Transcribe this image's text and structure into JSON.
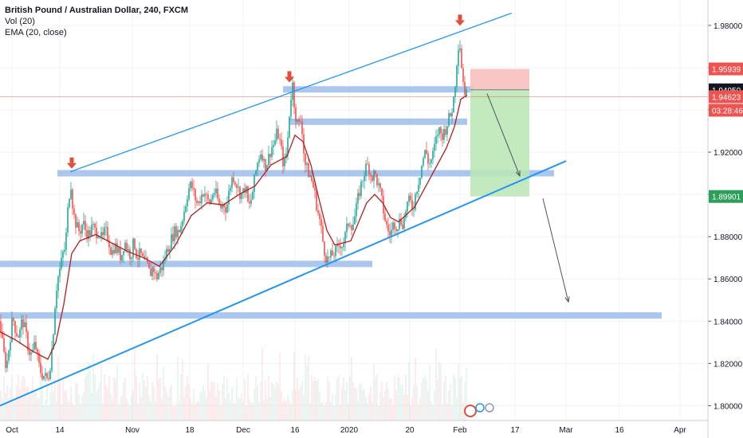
{
  "legend": {
    "title": "British Pound / Australian Dollar, 240, FXCM",
    "vol": "Vol (20)",
    "ema": "EMA (20, close)"
  },
  "colors": {
    "up": "#26a69a",
    "down": "#ef5350",
    "ema": "#b71c1c",
    "trendline": "#2196f3",
    "zone": "#90b4e8",
    "stop": "#f8bcbc",
    "target": "#b9e6b4",
    "arrow_marker": "#e04e39"
  },
  "chart_data": {
    "type": "candlestick",
    "symbol": "GBPAUD",
    "timeframe": "240",
    "x_tick_labels": [
      "Oct",
      "14",
      "Nov",
      "18",
      "Dec",
      "16",
      "2020",
      "20",
      "Feb",
      "17",
      "Mar",
      "16",
      "Apr"
    ],
    "y_ticks": [
      "1.98000",
      "1.96000",
      "1.94000",
      "1.92000",
      "1.90000",
      "1.88000",
      "1.86000",
      "1.84000",
      "1.82000",
      "1.80000"
    ],
    "ylim": [
      1.793,
      1.992
    ],
    "price_labels": [
      {
        "text": "1.95939",
        "value": 1.95939,
        "color": "#ef5350"
      },
      {
        "text": "1.94950",
        "value": 1.9495,
        "color": "#131722"
      },
      {
        "text": "1.94623",
        "value": 1.94623,
        "color": "#ef5350"
      },
      {
        "text": "03:28:46",
        "value": 1.94623,
        "color": "#ef5350",
        "offset": true
      },
      {
        "text": "1.89901",
        "value": 1.89901,
        "color": "#2e9e5b"
      }
    ],
    "price_path": [
      [
        0,
        1.84
      ],
      [
        4,
        1.826
      ],
      [
        8,
        1.818
      ],
      [
        12,
        1.83
      ],
      [
        16,
        1.842
      ],
      [
        20,
        1.835
      ],
      [
        24,
        1.833
      ],
      [
        28,
        1.841
      ],
      [
        32,
        1.835
      ],
      [
        36,
        1.826
      ],
      [
        40,
        1.824
      ],
      [
        44,
        1.83
      ],
      [
        48,
        1.82
      ],
      [
        52,
        1.815
      ],
      [
        56,
        1.814
      ],
      [
        60,
        1.812
      ],
      [
        64,
        1.822
      ],
      [
        67,
        1.836
      ],
      [
        70,
        1.854
      ],
      [
        73,
        1.861
      ],
      [
        76,
        1.866
      ],
      [
        79,
        1.872
      ],
      [
        82,
        1.875
      ],
      [
        86,
        1.898
      ],
      [
        89,
        1.905
      ],
      [
        92,
        1.891
      ],
      [
        96,
        1.885
      ],
      [
        100,
        1.882
      ],
      [
        104,
        1.887
      ],
      [
        108,
        1.882
      ],
      [
        112,
        1.881
      ],
      [
        116,
        1.885
      ],
      [
        120,
        1.882
      ],
      [
        124,
        1.883
      ],
      [
        128,
        1.878
      ],
      [
        132,
        1.883
      ],
      [
        136,
        1.879
      ],
      [
        140,
        1.872
      ],
      [
        144,
        1.876
      ],
      [
        148,
        1.873
      ],
      [
        152,
        1.87
      ],
      [
        156,
        1.878
      ],
      [
        160,
        1.874
      ],
      [
        164,
        1.871
      ],
      [
        168,
        1.878
      ],
      [
        172,
        1.87
      ],
      [
        176,
        1.872
      ],
      [
        180,
        1.868
      ],
      [
        184,
        1.867
      ],
      [
        188,
        1.862
      ],
      [
        192,
        1.866
      ],
      [
        196,
        1.86
      ],
      [
        200,
        1.864
      ],
      [
        204,
        1.866
      ],
      [
        208,
        1.872
      ],
      [
        212,
        1.876
      ],
      [
        216,
        1.88
      ],
      [
        220,
        1.883
      ],
      [
        224,
        1.882
      ],
      [
        228,
        1.887
      ],
      [
        232,
        1.894
      ],
      [
        236,
        1.902
      ],
      [
        240,
        1.905
      ],
      [
        244,
        1.899
      ],
      [
        248,
        1.895
      ],
      [
        252,
        1.899
      ],
      [
        256,
        1.902
      ],
      [
        260,
        1.897
      ],
      [
        264,
        1.896
      ],
      [
        268,
        1.902
      ],
      [
        272,
        1.899
      ],
      [
        276,
        1.893
      ],
      [
        280,
        1.896
      ],
      [
        284,
        1.893
      ],
      [
        288,
        1.903
      ],
      [
        292,
        1.909
      ],
      [
        296,
        1.906
      ],
      [
        300,
        1.901
      ],
      [
        304,
        1.9
      ],
      [
        308,
        1.904
      ],
      [
        312,
        1.893
      ],
      [
        316,
        1.899
      ],
      [
        320,
        1.909
      ],
      [
        324,
        1.917
      ],
      [
        328,
        1.921
      ],
      [
        332,
        1.913
      ],
      [
        336,
        1.916
      ],
      [
        340,
        1.922
      ],
      [
        344,
        1.924
      ],
      [
        348,
        1.93
      ],
      [
        352,
        1.923
      ],
      [
        356,
        1.913
      ],
      [
        360,
        1.921
      ],
      [
        364,
        1.944
      ],
      [
        367,
        1.952
      ],
      [
        370,
        1.939
      ],
      [
        374,
        1.932
      ],
      [
        378,
        1.936
      ],
      [
        382,
        1.915
      ],
      [
        386,
        1.911
      ],
      [
        390,
        1.908
      ],
      [
        394,
        1.902
      ],
      [
        398,
        1.893
      ],
      [
        402,
        1.886
      ],
      [
        406,
        1.875
      ],
      [
        410,
        1.869
      ],
      [
        414,
        1.87
      ],
      [
        418,
        1.872
      ],
      [
        422,
        1.873
      ],
      [
        426,
        1.877
      ],
      [
        430,
        1.876
      ],
      [
        434,
        1.882
      ],
      [
        438,
        1.888
      ],
      [
        442,
        1.885
      ],
      [
        446,
        1.891
      ],
      [
        450,
        1.9
      ],
      [
        454,
        1.906
      ],
      [
        458,
        1.912
      ],
      [
        462,
        1.914
      ],
      [
        466,
        1.908
      ],
      [
        470,
        1.91
      ],
      [
        474,
        1.905
      ],
      [
        478,
        1.899
      ],
      [
        482,
        1.89
      ],
      [
        486,
        1.883
      ],
      [
        490,
        1.881
      ],
      [
        494,
        1.887
      ],
      [
        498,
        1.885
      ],
      [
        502,
        1.888
      ],
      [
        506,
        1.886
      ],
      [
        510,
        1.895
      ],
      [
        514,
        1.897
      ],
      [
        518,
        1.893
      ],
      [
        522,
        1.902
      ],
      [
        526,
        1.908
      ],
      [
        530,
        1.916
      ],
      [
        534,
        1.921
      ],
      [
        538,
        1.914
      ],
      [
        542,
        1.917
      ],
      [
        546,
        1.924
      ],
      [
        550,
        1.931
      ],
      [
        554,
        1.928
      ],
      [
        558,
        1.93
      ],
      [
        562,
        1.935
      ],
      [
        566,
        1.938
      ],
      [
        570,
        1.948
      ],
      [
        573,
        1.963
      ],
      [
        576,
        1.975
      ],
      [
        579,
        1.961
      ],
      [
        582,
        1.95
      ],
      [
        586,
        1.9462
      ]
    ],
    "ema_path": [
      [
        0,
        1.835
      ],
      [
        20,
        1.831
      ],
      [
        40,
        1.826
      ],
      [
        60,
        1.822
      ],
      [
        70,
        1.83
      ],
      [
        80,
        1.848
      ],
      [
        90,
        1.872
      ],
      [
        100,
        1.878
      ],
      [
        120,
        1.881
      ],
      [
        140,
        1.877
      ],
      [
        160,
        1.873
      ],
      [
        180,
        1.87
      ],
      [
        200,
        1.866
      ],
      [
        220,
        1.876
      ],
      [
        240,
        1.89
      ],
      [
        260,
        1.896
      ],
      [
        280,
        1.895
      ],
      [
        300,
        1.9
      ],
      [
        320,
        1.904
      ],
      [
        340,
        1.914
      ],
      [
        360,
        1.918
      ],
      [
        370,
        1.928
      ],
      [
        380,
        1.925
      ],
      [
        390,
        1.914
      ],
      [
        400,
        1.898
      ],
      [
        410,
        1.883
      ],
      [
        420,
        1.876
      ],
      [
        440,
        1.878
      ],
      [
        460,
        1.896
      ],
      [
        470,
        1.9
      ],
      [
        480,
        1.896
      ],
      [
        490,
        1.889
      ],
      [
        500,
        1.887
      ],
      [
        520,
        1.894
      ],
      [
        540,
        1.908
      ],
      [
        560,
        1.922
      ],
      [
        570,
        1.932
      ],
      [
        578,
        1.945
      ],
      [
        586,
        1.947
      ]
    ],
    "annotations": {
      "channel_lines": [
        {
          "from": [
            0,
            1.8
          ],
          "to": [
            710,
            1.9158
          ]
        },
        {
          "from": [
            88,
            1.9107
          ],
          "to": [
            642,
            1.9858
          ]
        }
      ],
      "zones": [
        {
          "x1": 72,
          "x2": 695,
          "value": 1.91
        },
        {
          "x1": 355,
          "x2": 593,
          "value": 1.9497
        },
        {
          "x1": 363,
          "x2": 586,
          "value": 1.9344
        },
        {
          "x1": 0,
          "x2": 467,
          "value": 1.8671
        },
        {
          "x1": 0,
          "x2": 830,
          "value": 1.8427
        }
      ],
      "top_markers_x": [
        90,
        363,
        577
      ],
      "horizontal_line": 1.9462,
      "position": {
        "x1": 590,
        "x2": 664,
        "stop": 1.95939,
        "entry": 1.9495,
        "target": 1.89901
      },
      "arrows": [
        {
          "from": [
            611,
            1.9477
          ],
          "to": [
            652,
            1.9087
          ]
        },
        {
          "from": [
            681,
            1.8981
          ],
          "to": [
            713,
            1.8491
          ]
        }
      ]
    }
  }
}
